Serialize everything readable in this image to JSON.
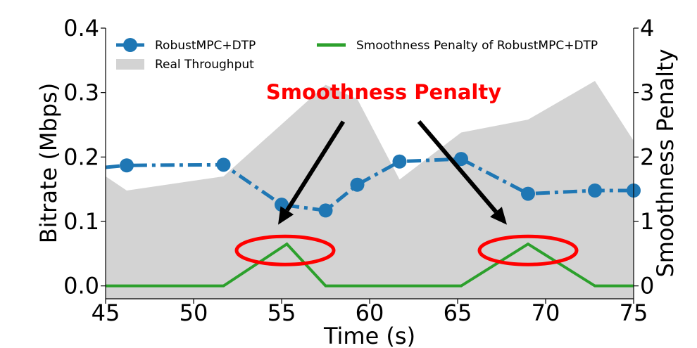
{
  "chart_data": {
    "type": "line",
    "xlabel": "Time (s)",
    "ylabel": "Bitrate (Mbps)",
    "y2label": "Smoothness Penalty",
    "xlim": [
      45,
      75
    ],
    "ylim": [
      -0.02,
      0.4
    ],
    "y2lim": [
      -0.2,
      4
    ],
    "xticks": [
      45,
      50,
      55,
      60,
      65,
      70,
      75
    ],
    "xtick_labels": [
      "45",
      "50",
      "55",
      "60",
      "65",
      "70",
      "75"
    ],
    "yticks": [
      0.0,
      0.1,
      0.2,
      0.3,
      0.4
    ],
    "ytick_labels": [
      "0.0",
      "0.1",
      "0.2",
      "0.3",
      "0.4"
    ],
    "y2ticks": [
      0,
      1,
      2,
      3,
      4
    ],
    "y2tick_labels": [
      "0",
      "1",
      "2",
      "3",
      "4"
    ],
    "grid": false,
    "legend": {
      "placement": "top",
      "entries": [
        {
          "label": "RobustMPC+DTP",
          "style": "dash-dot line with circle markers",
          "color": "#1f77b4"
        },
        {
          "label": "Smoothness Penalty of RobustMPC+DTP",
          "style": "solid line",
          "color": "#2ca02c"
        },
        {
          "label": "Real Throughput",
          "style": "filled area",
          "color": "#d3d3d3"
        }
      ]
    },
    "series": [
      {
        "name": "Real Throughput",
        "type": "area",
        "axis": "left",
        "color": "#d3d3d3",
        "x": [
          45,
          46.2,
          51.7,
          57.5,
          59.3,
          61.7,
          65.2,
          69.0,
          72.8,
          75
        ],
        "y": [
          0.17,
          0.148,
          0.17,
          0.312,
          0.29,
          0.165,
          0.238,
          0.258,
          0.318,
          0.225
        ]
      },
      {
        "name": "RobustMPC+DTP",
        "type": "line",
        "axis": "left",
        "color": "#1f77b4",
        "x": [
          45,
          46.2,
          51.7,
          55.0,
          57.5,
          59.3,
          61.7,
          65.2,
          69.0,
          72.8,
          75
        ],
        "y": [
          0.184,
          0.187,
          0.188,
          0.126,
          0.117,
          0.157,
          0.193,
          0.197,
          0.143,
          0.148,
          0.148
        ],
        "markers_from_index": 1
      },
      {
        "name": "Smoothness Penalty of RobustMPC+DTP",
        "type": "line",
        "axis": "right",
        "color": "#2ca02c",
        "x": [
          45,
          51.7,
          55.3,
          57.5,
          65.2,
          69.0,
          72.8,
          75
        ],
        "y": [
          0,
          0,
          0.65,
          0,
          0,
          0.65,
          0,
          0
        ]
      }
    ],
    "annotations": [
      {
        "text": "Smoothness Penalty",
        "color": "#ff0000",
        "x": 60.8,
        "y2": 2.9
      },
      {
        "type": "arrow",
        "from": {
          "x": 58.5,
          "y": 0.255
        },
        "to": {
          "x": 54.8,
          "y": 0.095
        }
      },
      {
        "type": "arrow",
        "from": {
          "x": 62.8,
          "y": 0.255
        },
        "to": {
          "x": 67.8,
          "y": 0.095
        }
      },
      {
        "type": "ellipse",
        "color": "#ff0000",
        "cx": 55.2,
        "cy2": 0.55
      },
      {
        "type": "ellipse",
        "color": "#ff0000",
        "cx": 69.0,
        "cy2": 0.55
      }
    ]
  }
}
